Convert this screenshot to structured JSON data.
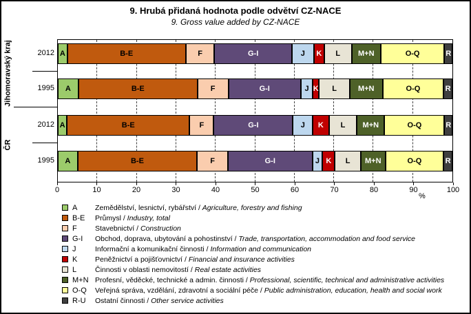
{
  "title": "9. Hrubá přidaná hodnota podle odvětví CZ-NACE",
  "subtitle": "9. Gross value added by CZ-NACE",
  "axis": {
    "x_unit": "%"
  },
  "groups": [
    {
      "label": "Jihomoravský kraj",
      "rows": [
        "2012",
        "1995"
      ]
    },
    {
      "label": "ČR",
      "rows": [
        "2012",
        "1995"
      ]
    }
  ],
  "chart_data": {
    "type": "bar",
    "stacked": true,
    "orientation": "horizontal",
    "unit": "%",
    "xlim": [
      0,
      100
    ],
    "x_ticks": [
      0,
      10,
      20,
      30,
      40,
      50,
      60,
      70,
      80,
      90,
      100
    ],
    "grid": "dashed-vertical",
    "categories": [
      "Jihomoravský kraj 2012",
      "Jihomoravský kraj 1995",
      "ČR 2012",
      "ČR 1995"
    ],
    "series": [
      {
        "name": "A",
        "bar_label": "A",
        "color": "#9CCB6B",
        "label_color": "#000000",
        "values": [
          2.4,
          5.2,
          2.3,
          5.0
        ]
      },
      {
        "name": "B-E",
        "bar_label": "B-E",
        "color": "#C05A0E",
        "label_color": "#000000",
        "values": [
          30.0,
          30.2,
          31.1,
          30.3
        ]
      },
      {
        "name": "F",
        "bar_label": "F",
        "color": "#FACDAE",
        "label_color": "#000000",
        "values": [
          7.3,
          7.8,
          6.1,
          7.8
        ]
      },
      {
        "name": "G-I",
        "bar_label": "G-I",
        "color": "#5F4A78",
        "label_color": "#FFFFFF",
        "values": [
          19.6,
          18.4,
          20.1,
          21.4
        ]
      },
      {
        "name": "J",
        "bar_label": "J",
        "color": "#BDD7EE",
        "label_color": "#000000",
        "values": [
          5.6,
          3.0,
          5.0,
          2.6
        ]
      },
      {
        "name": "K",
        "bar_label": "K",
        "color": "#C00000",
        "label_color": "#FFFFFF",
        "values": [
          2.6,
          1.6,
          4.1,
          3.1
        ]
      },
      {
        "name": "L",
        "bar_label": "L",
        "color": "#E8E4D5",
        "label_color": "#000000",
        "values": [
          7.0,
          7.8,
          7.1,
          6.6
        ]
      },
      {
        "name": "M+N",
        "bar_label": "M+N",
        "color": "#4E6128",
        "label_color": "#FFFFFF",
        "values": [
          7.3,
          8.3,
          7.0,
          6.2
        ]
      },
      {
        "name": "O-Q",
        "bar_label": "O-Q",
        "color": "#FFFF99",
        "label_color": "#000000",
        "values": [
          16.2,
          15.5,
          15.2,
          14.8
        ]
      },
      {
        "name": "R-U",
        "bar_label": "R",
        "color": "#3F3F3F",
        "label_color": "#FFFFFF",
        "values": [
          2.0,
          2.2,
          2.0,
          2.2
        ]
      }
    ]
  },
  "legend": {
    "items": [
      {
        "code": "A",
        "color": "#9CCB6B",
        "czech": "Zemědělství, lesnictví, rybářství",
        "english": "Agriculture, forestry and fishing"
      },
      {
        "code": "B-E",
        "color": "#C05A0E",
        "czech": "Průmysl",
        "english": "Industry, total"
      },
      {
        "code": "F",
        "color": "#FACDAE",
        "czech": "Stavebnictví",
        "english": "Construction"
      },
      {
        "code": "G-I",
        "color": "#5F4A78",
        "czech": "Obchod, doprava, ubytování a pohostinství",
        "english": "Trade, transportation, accommodation and food service"
      },
      {
        "code": "J",
        "color": "#BDD7EE",
        "czech": "Informační a komunikační činnosti",
        "english": "Information and communication"
      },
      {
        "code": "K",
        "color": "#C00000",
        "czech": "Peněžnictví a pojišťovnictví",
        "english": "Financial and insurance activities"
      },
      {
        "code": "L",
        "color": "#E8E4D5",
        "czech": "Činnosti v oblasti nemovitostí",
        "english": "Real estate activities"
      },
      {
        "code": "M+N",
        "color": "#4E6128",
        "czech": "Profesní, věděcké, technické a admin. činnosti",
        "english": "Professional, scientific, technical and administrative activities"
      },
      {
        "code": "O-Q",
        "color": "#FFFF99",
        "czech": "Veřejná správa, vzdělání, zdravotní a sociální péče",
        "english": "Public administration, education, health and social work"
      },
      {
        "code": "R-U",
        "color": "#3F3F3F",
        "czech": "Ostatní činnosti",
        "english": "Other service activities"
      }
    ]
  }
}
